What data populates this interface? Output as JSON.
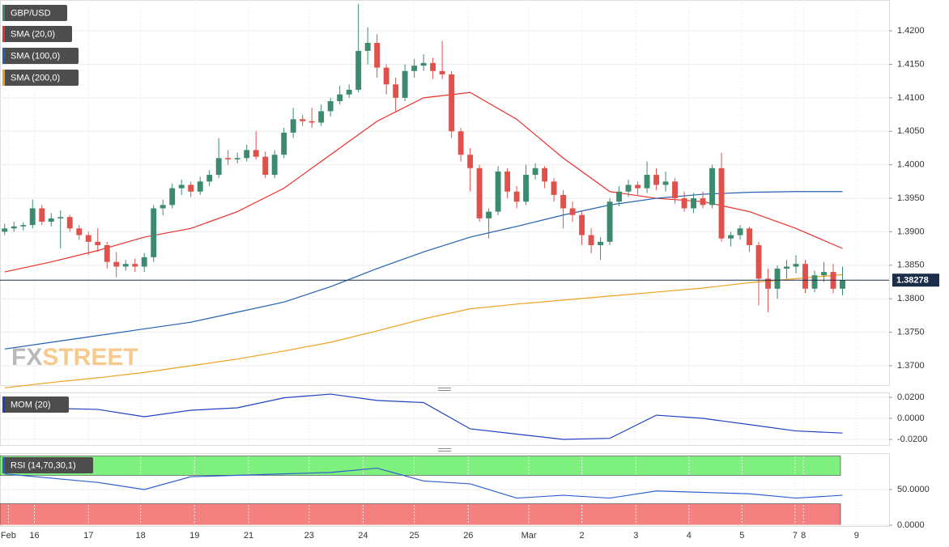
{
  "chart_data": [
    {
      "type": "candlestick",
      "symbol": "GBP/USD",
      "color_up": "#3d8b6e",
      "color_down": "#e0514b",
      "watermark": [
        "FX",
        "STREET"
      ],
      "last_price": 1.38278,
      "xlim": [
        -0.5,
        95
      ],
      "ylim": [
        1.3671,
        1.4246
      ],
      "yticks": [
        {
          "value": 1.37,
          "label": "1.3700"
        },
        {
          "value": 1.375,
          "label": "1.3750"
        },
        {
          "value": 1.38,
          "label": "1.3800"
        },
        {
          "value": 1.385,
          "label": "1.3850"
        },
        {
          "value": 1.39,
          "label": "1.3900"
        },
        {
          "value": 1.395,
          "label": "1.3950"
        },
        {
          "value": 1.4,
          "label": "1.4000"
        },
        {
          "value": 1.405,
          "label": "1.4050"
        },
        {
          "value": 1.41,
          "label": "1.4100"
        },
        {
          "value": 1.415,
          "label": "1.4150"
        },
        {
          "value": 1.42,
          "label": "1.4200"
        }
      ],
      "xticks": [
        {
          "value": 0.4,
          "label": "Feb"
        },
        {
          "value": 3.2,
          "label": "16"
        },
        {
          "value": 9.0,
          "label": "17"
        },
        {
          "value": 14.6,
          "label": "18"
        },
        {
          "value": 20.4,
          "label": "19"
        },
        {
          "value": 26.2,
          "label": "21"
        },
        {
          "value": 32.7,
          "label": "23"
        },
        {
          "value": 38.5,
          "label": "24"
        },
        {
          "value": 44.0,
          "label": "25"
        },
        {
          "value": 49.8,
          "label": "26"
        },
        {
          "value": 56.3,
          "label": "Mar"
        },
        {
          "value": 62.0,
          "label": "2"
        },
        {
          "value": 67.8,
          "label": "3"
        },
        {
          "value": 73.5,
          "label": "4"
        },
        {
          "value": 79.2,
          "label": "5"
        },
        {
          "value": 84.9,
          "label": "7"
        },
        {
          "value": 85.8,
          "label": "8"
        },
        {
          "value": 91.5,
          "label": "9"
        }
      ],
      "x": [
        0,
        1,
        2,
        3,
        4,
        5,
        6,
        7,
        8,
        9,
        10,
        11,
        12,
        13,
        14,
        15,
        16,
        17,
        18,
        19,
        20,
        21,
        22,
        23,
        24,
        25,
        26,
        27,
        28,
        29,
        30,
        31,
        32,
        33,
        34,
        35,
        36,
        37,
        38,
        39,
        40,
        41,
        42,
        43,
        44,
        45,
        46,
        47,
        48,
        49,
        50,
        51,
        52,
        53,
        54,
        55,
        56,
        57,
        58,
        59,
        60,
        61,
        62,
        63,
        64,
        65,
        66,
        67,
        68,
        69,
        70,
        71,
        72,
        73,
        74,
        75,
        76,
        77,
        78,
        79,
        80,
        81,
        82,
        83,
        84,
        85,
        86,
        87,
        88,
        89,
        90
      ],
      "candles": [
        [
          1.39,
          1.3912,
          1.3895,
          1.3905
        ],
        [
          1.3905,
          1.3915,
          1.39,
          1.3908
        ],
        [
          1.3908,
          1.3914,
          1.3902,
          1.391
        ],
        [
          1.391,
          1.3948,
          1.3905,
          1.3935
        ],
        [
          1.3935,
          1.394,
          1.391,
          1.3915
        ],
        [
          1.3915,
          1.3928,
          1.3908,
          1.392
        ],
        [
          1.392,
          1.3932,
          1.3875,
          1.3922
        ],
        [
          1.3922,
          1.3925,
          1.39,
          1.3905
        ],
        [
          1.3905,
          1.391,
          1.3888,
          1.3895
        ],
        [
          1.3895,
          1.39,
          1.3865,
          1.3885
        ],
        [
          1.3885,
          1.3905,
          1.387,
          1.388
        ],
        [
          1.388,
          1.3885,
          1.3845,
          1.3855
        ],
        [
          1.3855,
          1.387,
          1.3832,
          1.3848
        ],
        [
          1.3848,
          1.3858,
          1.3842,
          1.3852
        ],
        [
          1.3852,
          1.386,
          1.384,
          1.3848
        ],
        [
          1.3848,
          1.3868,
          1.384,
          1.3862
        ],
        [
          1.3862,
          1.394,
          1.3855,
          1.3935
        ],
        [
          1.3935,
          1.3948,
          1.3925,
          1.394
        ],
        [
          1.394,
          1.3972,
          1.3935,
          1.3965
        ],
        [
          1.3965,
          1.3978,
          1.3955,
          1.397
        ],
        [
          1.397,
          1.3975,
          1.3952,
          1.396
        ],
        [
          1.396,
          1.3982,
          1.3955,
          1.3975
        ],
        [
          1.3975,
          1.3992,
          1.3968,
          1.3985
        ],
        [
          1.3985,
          1.404,
          1.398,
          1.401
        ],
        [
          1.401,
          1.4022,
          1.4,
          1.4008
        ],
        [
          1.4008,
          1.4018,
          1.4002,
          1.401
        ],
        [
          1.401,
          1.403,
          1.4005,
          1.4022
        ],
        [
          1.4022,
          1.405,
          1.4008,
          1.4012
        ],
        [
          1.4012,
          1.402,
          1.398,
          1.3985
        ],
        [
          1.3985,
          1.4022,
          1.398,
          1.4015
        ],
        [
          1.4015,
          1.4055,
          1.401,
          1.4048
        ],
        [
          1.4048,
          1.4085,
          1.404,
          1.4068
        ],
        [
          1.4068,
          1.4075,
          1.4058,
          1.4065
        ],
        [
          1.4065,
          1.4085,
          1.4055,
          1.4063
        ],
        [
          1.4063,
          1.409,
          1.4058,
          1.408
        ],
        [
          1.408,
          1.41,
          1.4072,
          1.4095
        ],
        [
          1.4095,
          1.4118,
          1.409,
          1.4105
        ],
        [
          1.4105,
          1.412,
          1.41,
          1.4112
        ],
        [
          1.4112,
          1.424,
          1.4108,
          1.417
        ],
        [
          1.417,
          1.4205,
          1.415,
          1.4182
        ],
        [
          1.4182,
          1.4195,
          1.413,
          1.4145
        ],
        [
          1.4145,
          1.415,
          1.4105,
          1.412
        ],
        [
          1.412,
          1.413,
          1.408,
          1.41
        ],
        [
          1.41,
          1.415,
          1.4095,
          1.414
        ],
        [
          1.414,
          1.4158,
          1.413,
          1.4148
        ],
        [
          1.4148,
          1.4165,
          1.414,
          1.4152
        ],
        [
          1.4152,
          1.416,
          1.4128,
          1.414
        ],
        [
          1.414,
          1.4185,
          1.4128,
          1.4135
        ],
        [
          1.4135,
          1.414,
          1.404,
          1.405
        ],
        [
          1.405,
          1.4055,
          1.4005,
          1.4015
        ],
        [
          1.4015,
          1.4025,
          1.396,
          1.3995
        ],
        [
          1.3995,
          1.4,
          1.3915,
          1.392
        ],
        [
          1.392,
          1.3935,
          1.389,
          1.393
        ],
        [
          1.393,
          1.3998,
          1.3925,
          1.399
        ],
        [
          1.399,
          1.3995,
          1.395,
          1.396
        ],
        [
          1.396,
          1.3968,
          1.3935,
          1.3945
        ],
        [
          1.3945,
          1.4,
          1.394,
          1.3985
        ],
        [
          1.3985,
          1.4002,
          1.3978,
          1.3995
        ],
        [
          1.3995,
          1.3998,
          1.3965,
          1.3975
        ],
        [
          1.3975,
          1.398,
          1.3945,
          1.3955
        ],
        [
          1.3955,
          1.3962,
          1.3905,
          1.3935
        ],
        [
          1.3935,
          1.3945,
          1.3915,
          1.3925
        ],
        [
          1.3925,
          1.393,
          1.388,
          1.3895
        ],
        [
          1.3895,
          1.3905,
          1.3868,
          1.388
        ],
        [
          1.388,
          1.3892,
          1.3858,
          1.3885
        ],
        [
          1.3885,
          1.395,
          1.388,
          1.3945
        ],
        [
          1.3945,
          1.3968,
          1.3938,
          1.396
        ],
        [
          1.396,
          1.3978,
          1.3952,
          1.397
        ],
        [
          1.397,
          1.3975,
          1.3955,
          1.3965
        ],
        [
          1.3965,
          1.4005,
          1.3958,
          1.3985
        ],
        [
          1.3985,
          1.3995,
          1.3962,
          1.397
        ],
        [
          1.397,
          1.399,
          1.396,
          1.3975
        ],
        [
          1.3975,
          1.398,
          1.3942,
          1.395
        ],
        [
          1.395,
          1.396,
          1.393,
          1.3935
        ],
        [
          1.3935,
          1.3958,
          1.3928,
          1.395
        ],
        [
          1.395,
          1.396,
          1.3935,
          1.394
        ],
        [
          1.394,
          1.4,
          1.3935,
          1.3995
        ],
        [
          1.3995,
          1.4018,
          1.3885,
          1.389
        ],
        [
          1.389,
          1.39,
          1.3878,
          1.3895
        ],
        [
          1.3895,
          1.391,
          1.3888,
          1.3905
        ],
        [
          1.3905,
          1.3908,
          1.387,
          1.388
        ],
        [
          1.388,
          1.3885,
          1.379,
          1.383
        ],
        [
          1.383,
          1.3845,
          1.378,
          1.3815
        ],
        [
          1.3815,
          1.385,
          1.38,
          1.3845
        ],
        [
          1.3845,
          1.3858,
          1.383,
          1.3848
        ],
        [
          1.3848,
          1.3865,
          1.3838,
          1.3852
        ],
        [
          1.3852,
          1.3858,
          1.3808,
          1.3815
        ],
        [
          1.3815,
          1.3842,
          1.381,
          1.3835
        ],
        [
          1.3835,
          1.3855,
          1.3825,
          1.384
        ],
        [
          1.384,
          1.3852,
          1.3808,
          1.3815
        ],
        [
          1.3815,
          1.3848,
          1.3805,
          1.38278
        ]
      ],
      "series": [
        {
          "name": "SMA (20,0)",
          "color": "#e8302a",
          "x": [
            0,
            5,
            10,
            15,
            20,
            25,
            30,
            35,
            40,
            45,
            50,
            55,
            60,
            65,
            70,
            75,
            80,
            85,
            90
          ],
          "values": [
            1.384,
            1.3855,
            1.3872,
            1.3892,
            1.3905,
            1.393,
            1.3965,
            1.4015,
            1.4065,
            1.41,
            1.4108,
            1.4068,
            1.401,
            1.396,
            1.395,
            1.3945,
            1.393,
            1.3905,
            1.3875
          ]
        },
        {
          "name": "SMA (100,0)",
          "color": "#2060b0",
          "x": [
            0,
            5,
            10,
            15,
            20,
            25,
            30,
            35,
            40,
            45,
            50,
            55,
            60,
            65,
            70,
            75,
            80,
            85,
            90
          ],
          "values": [
            1.3725,
            1.3735,
            1.3745,
            1.3755,
            1.3765,
            1.378,
            1.3795,
            1.3818,
            1.3845,
            1.387,
            1.3892,
            1.3908,
            1.3925,
            1.394,
            1.395,
            1.3956,
            1.3959,
            1.396,
            1.396
          ]
        },
        {
          "name": "SMA (200,0)",
          "color": "#f0a020",
          "x": [
            0,
            5,
            10,
            15,
            20,
            25,
            30,
            35,
            40,
            45,
            50,
            55,
            60,
            65,
            70,
            75,
            80,
            85,
            90
          ],
          "values": [
            1.3667,
            1.3675,
            1.3682,
            1.369,
            1.37,
            1.371,
            1.3722,
            1.3735,
            1.3752,
            1.377,
            1.3785,
            1.3792,
            1.3798,
            1.3804,
            1.381,
            1.3816,
            1.3824,
            1.383,
            1.3836
          ]
        }
      ]
    },
    {
      "type": "line",
      "ylim": [
        -0.0254,
        0.0246
      ],
      "yticks": [
        {
          "value": 0.02,
          "label": "0.0200"
        },
        {
          "value": 0,
          "label": "0.0000"
        },
        {
          "value": -0.02,
          "label": "-0.0200"
        }
      ],
      "series": [
        {
          "name": "MOM (20)",
          "color": "#2040c0",
          "x": [
            0,
            5,
            10,
            15,
            20,
            25,
            30,
            35,
            40,
            45,
            50,
            55,
            60,
            65,
            70,
            75,
            80,
            85,
            90
          ],
          "values": [
            0.0108,
            0.0095,
            0.0085,
            0.0015,
            0.0077,
            0.01,
            0.0195,
            0.023,
            0.017,
            0.015,
            -0.01,
            -0.015,
            -0.02,
            -0.019,
            0.003,
            0.0,
            -0.006,
            -0.012,
            -0.014
          ]
        }
      ]
    },
    {
      "type": "line",
      "ylim": [
        -1.1,
        101.1
      ],
      "yticks": [
        {
          "value": 50,
          "label": "50.0000"
        },
        {
          "value": 0,
          "label": "0.0000"
        }
      ],
      "bands": [
        {
          "from": 70,
          "to": 97,
          "color": "#7ef07e"
        },
        {
          "from": 0,
          "to": 30,
          "color": "#f48080"
        }
      ],
      "series": [
        {
          "name": "RSI (14,70,30,1)",
          "color": "#3060d0",
          "x": [
            0,
            5,
            10,
            15,
            20,
            25,
            30,
            35,
            40,
            45,
            50,
            55,
            60,
            65,
            70,
            75,
            80,
            85,
            90
          ],
          "values": [
            72,
            66,
            60,
            50,
            68,
            70,
            72,
            74,
            80,
            62,
            58,
            38,
            42,
            38,
            48,
            46,
            44,
            38,
            42
          ]
        }
      ]
    }
  ]
}
